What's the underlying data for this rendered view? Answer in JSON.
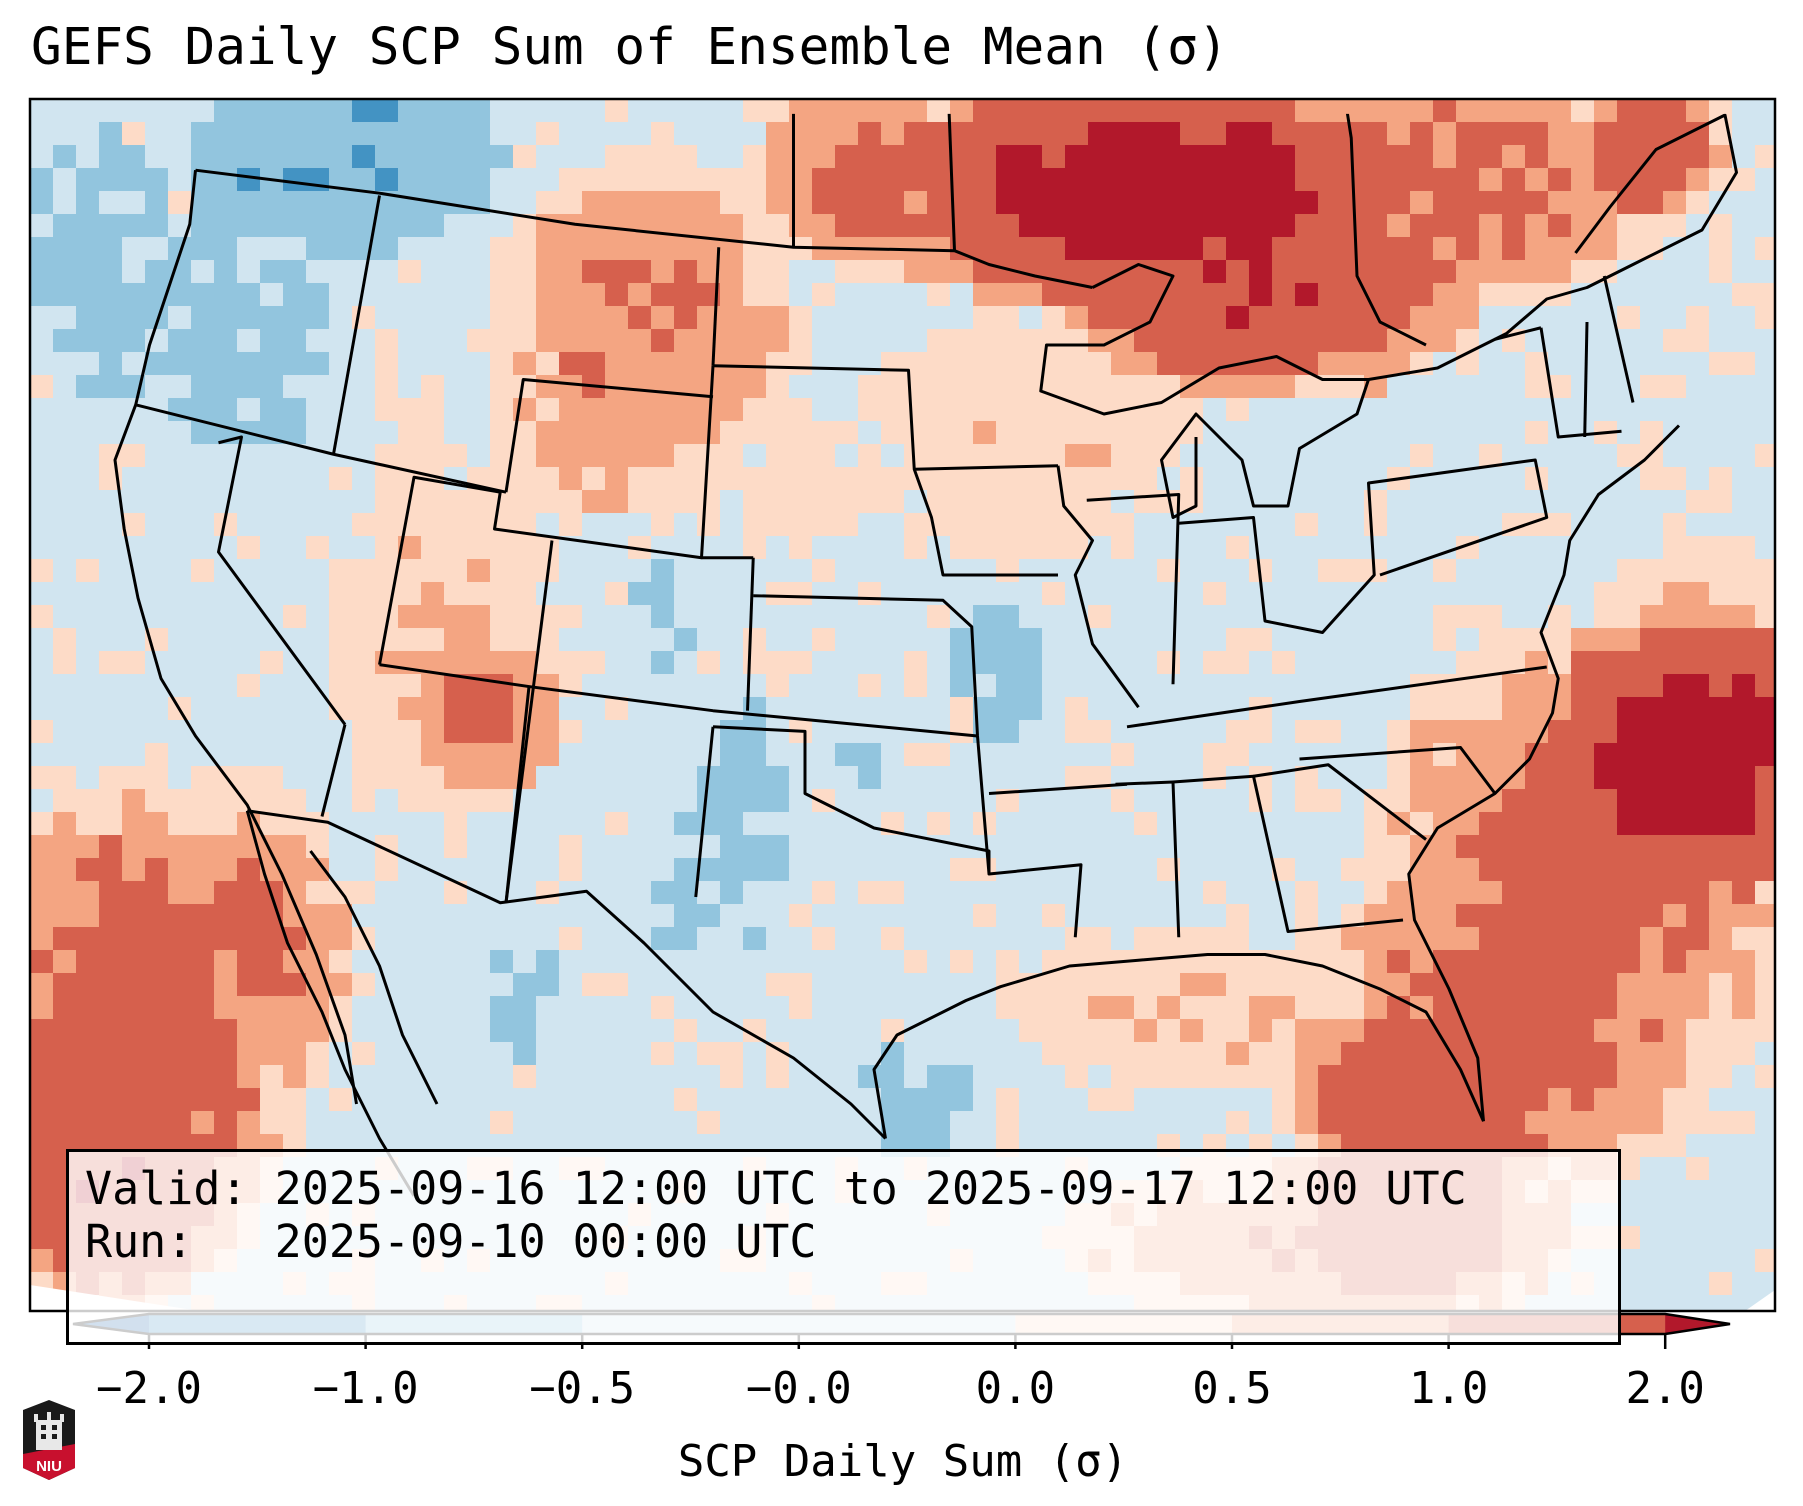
{
  "title": "GEFS Daily SCP Sum of Ensemble Mean (σ)",
  "annotation": {
    "valid_line": "Valid: 2025-09-16 12:00 UTC to 2025-09-17 12:00 UTC",
    "run_line": "Run:   2025-09-10 00:00 UTC"
  },
  "colorbar": {
    "label": "SCP Daily Sum (σ)",
    "ticks": [
      "−2.0",
      "−1.0",
      "−0.5",
      "−0.0",
      "0.0",
      "0.5",
      "1.0",
      "2.0"
    ],
    "bounds": [
      -2.0,
      -1.0,
      -0.5,
      -0.0,
      0.0,
      0.5,
      1.0,
      2.0
    ],
    "under_color": "#2166ac",
    "over_color": "#b2182b",
    "bin_colors": [
      "#4393c3",
      "#92c5de",
      "#d1e5f0",
      "#d1e5f0",
      "#fddbc7",
      "#f4a582",
      "#d6604d"
    ],
    "extend": "both"
  },
  "logo": {
    "text": "NIU",
    "colors": {
      "shield": "#1a1a1a",
      "band": "#c8102e"
    }
  },
  "chart_data": {
    "type": "heatmap",
    "title": "GEFS Daily SCP Sum of Ensemble Mean (σ)",
    "variable": "SCP Daily Sum (σ)",
    "valid": "2025-09-16 12:00 UTC to 2025-09-17 12:00 UTC",
    "run": "2025-09-10 00:00 UTC",
    "region": "CONUS",
    "value_range": [
      -2.0,
      2.0
    ],
    "levels": [
      -2.0,
      -1.0,
      -0.5,
      -0.0,
      0.0,
      0.5,
      1.0,
      2.0
    ],
    "regional_values": [
      {
        "region": "Northern Minnesota / Ontario / Lake Superior",
        "category": "≥ 2.0"
      },
      {
        "region": "North Dakota / southern Manitoba",
        "category": "1.0 to 2.0"
      },
      {
        "region": "Eastern Montana / Wyoming",
        "category": "0.5 to 2.0"
      },
      {
        "region": "Western Atlantic east of Carolinas",
        "category": "1.0 to ≥ 2.0"
      },
      {
        "region": "South Florida / Bahamas",
        "category": "1.0 to ≥ 2.0"
      },
      {
        "region": "Baja California / eastern Pacific",
        "category": "1.0 to ≥ 2.0"
      },
      {
        "region": "Arizona / Utah",
        "category": "0.0 to 1.0"
      },
      {
        "region": "Pacific Northwest / Washington",
        "category": "−1.0 to −0.5"
      },
      {
        "region": "Southern Plains / Texas / Missouri",
        "category": "−1.0 to 0.0"
      },
      {
        "region": "Eastern US / Midwest / Southeast",
        "category": "−0.5 to 0.0"
      }
    ]
  }
}
